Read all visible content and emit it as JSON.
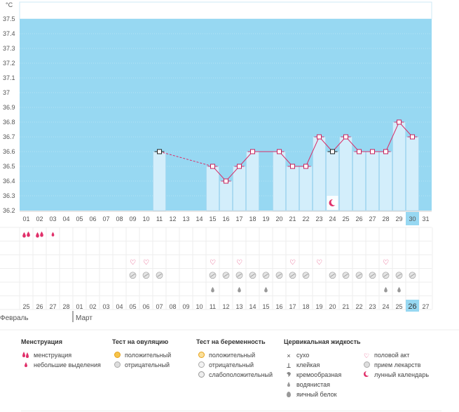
{
  "header": {
    "unit_label": "°C"
  },
  "colors": {
    "chart_bg": "#97d8f2",
    "bar_fill": "#d3eefb",
    "bar_stroke": "#9fd2ec",
    "line": "#d8306a",
    "point_stroke": "#c8205a",
    "point_fill": "#ffffff",
    "dates_red": "#d7245b",
    "today_bg": "#97d8f2"
  },
  "chart_data": {
    "type": "line",
    "title": "",
    "ylabel": "°C",
    "ylim": [
      36.2,
      37.5
    ],
    "y_ticks": [
      "37.5",
      "37.4",
      "37.3",
      "37.2",
      "37.1",
      "37",
      "36.9",
      "36.8",
      "36.7",
      "36.6",
      "36.5",
      "36.4",
      "36.3",
      "36.2"
    ],
    "y_tick_values": [
      37.5,
      37.4,
      37.3,
      37.2,
      37.1,
      37.0,
      36.9,
      36.8,
      36.7,
      36.6,
      36.5,
      36.4,
      36.3,
      36.2
    ],
    "cycle_days": [
      "01",
      "02",
      "03",
      "04",
      "05",
      "06",
      "07",
      "08",
      "09",
      "10",
      "11",
      "12",
      "13",
      "14",
      "15",
      "16",
      "17",
      "18",
      "19",
      "20",
      "21",
      "22",
      "23",
      "24",
      "25",
      "26",
      "27",
      "28",
      "29",
      "30",
      "31"
    ],
    "current_day_index": 29,
    "temperatures": [
      null,
      null,
      null,
      null,
      null,
      null,
      null,
      null,
      null,
      null,
      36.6,
      null,
      null,
      null,
      36.5,
      36.4,
      36.5,
      36.6,
      null,
      36.6,
      36.5,
      36.5,
      36.7,
      36.6,
      36.7,
      36.6,
      36.6,
      36.6,
      36.8,
      36.7,
      null
    ],
    "point_styles": [
      "",
      "",
      "",
      "",
      "",
      "",
      "",
      "",
      "",
      "",
      "black",
      "",
      "",
      "",
      "pink",
      "pink",
      "pink",
      "pink",
      "",
      "pink",
      "pink",
      "pink",
      "pink",
      "black",
      "pink",
      "pink",
      "pink",
      "pink",
      "pink",
      "pink",
      ""
    ],
    "dashed_segments": [
      [
        10,
        14
      ],
      [
        18,
        19
      ]
    ],
    "moon_day_index": 23
  },
  "symptoms": {
    "menstruation": [
      2,
      2,
      1,
      0,
      0,
      0,
      0,
      0,
      0,
      0,
      0,
      0,
      0,
      0,
      0,
      0,
      0,
      0,
      0,
      0,
      0,
      0,
      0,
      0,
      0,
      0,
      0,
      0,
      0,
      0,
      0
    ],
    "intercourse": [
      0,
      0,
      0,
      0,
      0,
      0,
      0,
      0,
      1,
      1,
      0,
      0,
      0,
      0,
      1,
      0,
      1,
      0,
      0,
      0,
      1,
      0,
      1,
      0,
      0,
      0,
      0,
      1,
      0,
      0,
      0
    ],
    "medicine": [
      0,
      0,
      0,
      0,
      0,
      0,
      0,
      0,
      1,
      1,
      1,
      0,
      0,
      0,
      1,
      1,
      1,
      1,
      1,
      1,
      1,
      1,
      0,
      1,
      1,
      1,
      1,
      1,
      1,
      1,
      0
    ],
    "egg_white": [
      0,
      0,
      0,
      0,
      0,
      0,
      0,
      0,
      0,
      0,
      0,
      0,
      0,
      0,
      1,
      0,
      1,
      0,
      1,
      0,
      0,
      0,
      0,
      0,
      0,
      0,
      0,
      1,
      1,
      0,
      0
    ]
  },
  "calendar": {
    "dates": [
      "25",
      "26",
      "27",
      "28",
      "01",
      "02",
      "03",
      "04",
      "05",
      "06",
      "07",
      "08",
      "09",
      "10",
      "11",
      "12",
      "13",
      "14",
      "15",
      "16",
      "17",
      "18",
      "19",
      "20",
      "21",
      "22",
      "23",
      "24",
      "25",
      "26",
      "27"
    ],
    "red_indices": [
      4,
      5,
      11,
      12,
      18,
      19,
      25,
      26
    ],
    "today_index": 29,
    "month_start_1": "Февраль",
    "month_start_2": "Март",
    "month_break_index": 4
  },
  "legend": {
    "menstruation": {
      "title": "Менструация",
      "items": [
        "менструация",
        "небольшие выделения"
      ]
    },
    "ovulation_test": {
      "title": "Тест на овуляцию",
      "items": [
        "положительный",
        "отрицательный"
      ]
    },
    "pregnancy_test": {
      "title": "Тест на беременность",
      "items": [
        "положительный",
        "отрицательный",
        "слабоположительный"
      ]
    },
    "cervical": {
      "title": "Цервикальная жидкость",
      "items": [
        "сухо",
        "клейкая",
        "кремообразная",
        "водянистая",
        "яичный белок"
      ]
    },
    "other": {
      "items": [
        "половой акт",
        "прием лекарств",
        "лунный календарь"
      ]
    }
  }
}
